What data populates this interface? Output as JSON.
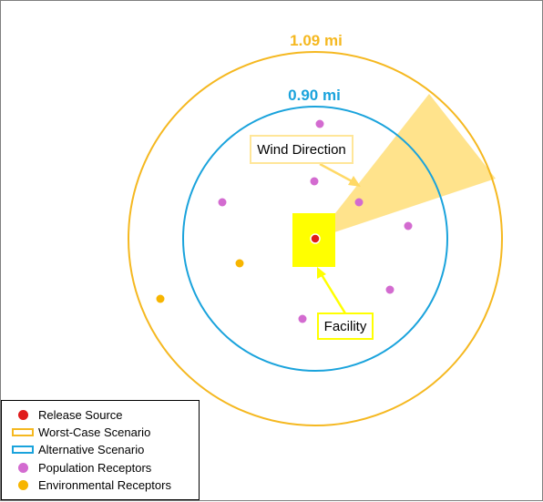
{
  "rings": {
    "worst_case": {
      "label": "1.09 mi",
      "color": "#F5B820"
    },
    "alternative": {
      "label": "0.90 mi",
      "color": "#1AA3DC"
    }
  },
  "callouts": {
    "wind": {
      "text": "Wind Direction",
      "border_color": "#FFE699"
    },
    "facility": {
      "text": "Facility",
      "border_color": "#FFFF00"
    }
  },
  "colors": {
    "release_source": "#E01B1B",
    "population": "#D36BD0",
    "environmental": "#F7B500",
    "facility_fill": "#FFFF00",
    "wind_cone": "#FFD966",
    "wind_arrow": "#FFD966",
    "facility_arrow": "#FFFF00"
  },
  "legend": {
    "items": [
      {
        "label": "Release Source",
        "symbol": "dot",
        "color": "#E01B1B"
      },
      {
        "label": "Worst-Case Scenario",
        "symbol": "box",
        "color": "#F5B820"
      },
      {
        "label": "Alternative Scenario",
        "symbol": "box",
        "color": "#1AA3DC"
      },
      {
        "label": "Population Receptors",
        "symbol": "dot",
        "color": "#D36BD0"
      },
      {
        "label": "Environmental Receptors",
        "symbol": "dot",
        "color": "#F7B500"
      }
    ]
  }
}
